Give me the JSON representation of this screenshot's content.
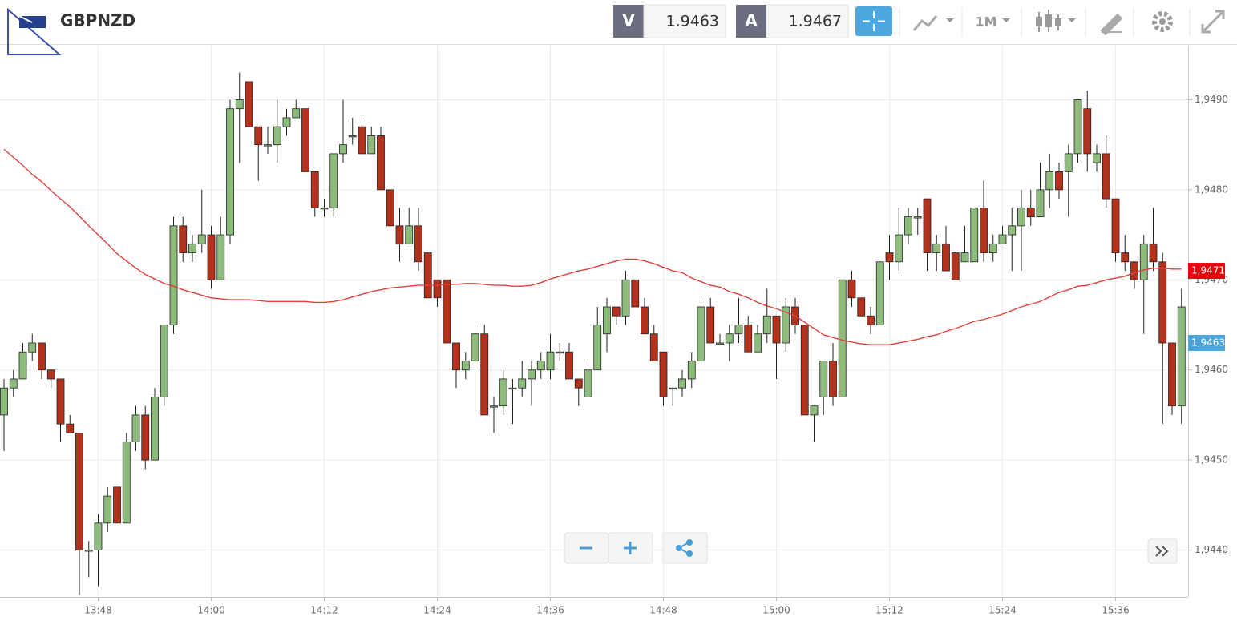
{
  "header": {
    "symbol": "GBPNZD",
    "bid_label": "V",
    "bid": "1.9463",
    "ask_label": "A",
    "ask": "1.9467",
    "timeframe": "1M"
  },
  "chart_data": {
    "type": "candlestick",
    "categories": [
      null,
      null,
      null,
      null,
      null,
      null,
      null,
      null,
      null,
      null,
      "13:48",
      null,
      null,
      null,
      null,
      null,
      null,
      null,
      null,
      null,
      null,
      null,
      "14:00",
      null,
      null,
      null,
      null,
      null,
      null,
      null,
      null,
      null,
      null,
      null,
      "14:12",
      null,
      null,
      null,
      null,
      null,
      null,
      null,
      null,
      null,
      null,
      null,
      "14:24",
      null,
      null,
      null,
      null,
      null,
      null,
      null,
      null,
      null,
      null,
      null,
      "14:36",
      null,
      null,
      null,
      null,
      null,
      null,
      null,
      null,
      null,
      null,
      null,
      "14:48",
      null,
      null,
      null,
      null,
      null,
      null,
      null,
      null,
      null,
      null,
      null,
      "15:00",
      null,
      null,
      null,
      null,
      null,
      null,
      null,
      null,
      null,
      null,
      null,
      "15:12",
      null,
      null,
      null,
      null,
      null,
      null,
      null,
      null,
      null,
      null,
      null,
      "15:24",
      null,
      null,
      null,
      null,
      null,
      null,
      null,
      null,
      null,
      null,
      null,
      "15:36",
      null,
      null,
      null,
      null,
      null,
      null,
      null
    ],
    "open": [
      1.9455,
      1.9458,
      1.9459,
      1.9462,
      1.9463,
      1.946,
      1.9459,
      1.9454,
      1.9453,
      1.944,
      1.944,
      1.9443,
      1.9447,
      1.9443,
      1.9452,
      1.9455,
      1.945,
      1.9457,
      1.9465,
      1.9476,
      1.9473,
      1.9474,
      1.9475,
      1.947,
      1.9475,
      1.9489,
      1.9492,
      1.9487,
      1.9485,
      1.9485,
      1.9487,
      1.9488,
      1.9489,
      1.9482,
      1.9478,
      1.9478,
      1.9484,
      1.9486,
      1.9487,
      1.9484,
      1.9486,
      1.948,
      1.9476,
      1.9474,
      1.9476,
      1.9473,
      1.947,
      1.947,
      1.9463,
      1.946,
      1.9461,
      1.9464,
      1.9456,
      1.9456,
      1.9458,
      1.9458,
      1.9459,
      1.946,
      1.946,
      1.9462,
      1.9462,
      1.9459,
      1.9457,
      1.946,
      1.9464,
      1.9467,
      1.9466,
      1.947,
      1.9467,
      1.9464,
      1.9462,
      1.9458,
      1.9458,
      1.9459,
      1.9461,
      1.9467,
      1.9463,
      1.9463,
      1.9464,
      1.9465,
      1.9462,
      1.9464,
      1.9466,
      1.9463,
      1.9467,
      1.9465,
      1.9455,
      1.9457,
      1.9461,
      1.9457,
      1.947,
      1.9468,
      1.9466,
      1.9465,
      1.9473,
      1.9472,
      1.9475,
      1.9477,
      1.9479,
      1.9473,
      1.9474,
      1.9473,
      1.9472,
      1.9472,
      1.9478,
      1.9473,
      1.9474,
      1.9475,
      1.9476,
      1.9478,
      1.9477,
      1.948,
      1.9482,
      1.9482,
      1.9484,
      1.9489,
      1.9483,
      1.9484,
      1.9479,
      1.9473,
      1.9472,
      1.947,
      1.9474,
      1.9472,
      1.9463,
      1.9456
    ],
    "high": [
      1.9459,
      1.946,
      1.9463,
      1.9464,
      1.9463,
      1.946,
      1.9459,
      1.9455,
      1.9453,
      1.9441,
      1.9444,
      1.9447,
      1.9447,
      1.9453,
      1.9456,
      1.9456,
      1.9458,
      1.9465,
      1.9477,
      1.9477,
      1.9475,
      1.948,
      1.9476,
      1.9477,
      1.949,
      1.9493,
      1.9492,
      1.9487,
      1.9487,
      1.949,
      1.9489,
      1.949,
      1.9489,
      1.9482,
      1.9479,
      1.9484,
      1.949,
      1.9488,
      1.9488,
      1.9487,
      1.9487,
      1.948,
      1.9478,
      1.9478,
      1.9478,
      1.9473,
      1.947,
      1.947,
      1.9463,
      1.9462,
      1.9465,
      1.9465,
      1.9457,
      1.946,
      1.9459,
      1.9461,
      1.9461,
      1.9462,
      1.9464,
      1.9463,
      1.9463,
      1.9459,
      1.9461,
      1.9467,
      1.9468,
      1.9467,
      1.9471,
      1.947,
      1.9468,
      1.9465,
      1.9462,
      1.9458,
      1.946,
      1.9462,
      1.9468,
      1.9468,
      1.9464,
      1.9465,
      1.9468,
      1.9466,
      1.9465,
      1.9469,
      1.9466,
      1.9468,
      1.9468,
      1.9465,
      1.9456,
      1.9461,
      1.9463,
      1.947,
      1.9471,
      1.9468,
      1.9467,
      1.9472,
      1.9475,
      1.9478,
      1.9478,
      1.9478,
      1.9479,
      1.9475,
      1.9476,
      1.9473,
      1.9476,
      1.9478,
      1.9481,
      1.9475,
      1.9476,
      1.9478,
      1.948,
      1.948,
      1.9483,
      1.9484,
      1.9483,
      1.9485,
      1.949,
      1.9491,
      1.9485,
      1.9486,
      1.9479,
      1.9475,
      1.9472,
      1.9475,
      1.9478,
      1.9473,
      1.9463,
      1.9469
    ],
    "low": [
      1.9451,
      1.9457,
      1.9459,
      1.9461,
      1.9459,
      1.9458,
      1.9452,
      1.9453,
      1.9435,
      1.9437,
      1.9436,
      1.9442,
      1.9443,
      1.9443,
      1.9451,
      1.9449,
      1.945,
      1.9456,
      1.9464,
      1.9472,
      1.9472,
      1.9473,
      1.9469,
      1.947,
      1.9474,
      1.9483,
      1.9487,
      1.9481,
      1.9484,
      1.9483,
      1.9486,
      1.9488,
      1.9482,
      1.9477,
      1.9477,
      1.9477,
      1.9483,
      1.9485,
      1.9484,
      1.9484,
      1.948,
      1.9476,
      1.9472,
      1.9474,
      1.9471,
      1.9468,
      1.9467,
      1.9463,
      1.9458,
      1.9459,
      1.946,
      1.9455,
      1.9453,
      1.9455,
      1.9454,
      1.9457,
      1.9456,
      1.9459,
      1.9459,
      1.9461,
      1.9459,
      1.9456,
      1.9457,
      1.946,
      1.9462,
      1.9465,
      1.9465,
      1.9467,
      1.9464,
      1.9461,
      1.9456,
      1.9456,
      1.9457,
      1.9458,
      1.9461,
      1.9463,
      1.9463,
      1.9461,
      1.9463,
      1.9462,
      1.9462,
      1.9463,
      1.9459,
      1.9462,
      1.9464,
      1.9455,
      1.9452,
      1.9455,
      1.9456,
      1.9457,
      1.9467,
      1.9466,
      1.9464,
      1.9465,
      1.947,
      1.9471,
      1.9474,
      1.9475,
      1.9471,
      1.9471,
      1.9471,
      1.947,
      1.9472,
      1.9472,
      1.9472,
      1.9472,
      1.9474,
      1.9471,
      1.9471,
      1.9476,
      1.9477,
      1.9478,
      1.9479,
      1.9477,
      1.9483,
      1.9482,
      1.9482,
      1.9478,
      1.9472,
      1.9471,
      1.9469,
      1.9464,
      1.9471,
      1.9454,
      1.9455,
      1.9454
    ],
    "close": [
      1.9458,
      1.9459,
      1.9462,
      1.9463,
      1.946,
      1.9459,
      1.9454,
      1.9453,
      1.944,
      1.944,
      1.9443,
      1.9446,
      1.9443,
      1.9452,
      1.9455,
      1.945,
      1.9457,
      1.9465,
      1.9476,
      1.9473,
      1.9474,
      1.9475,
      1.947,
      1.9475,
      1.9489,
      1.949,
      1.9487,
      1.9485,
      1.9485,
      1.9487,
      1.9488,
      1.9489,
      1.9482,
      1.9478,
      1.9478,
      1.9484,
      1.9485,
      1.9486,
      1.9484,
      1.9486,
      1.948,
      1.9476,
      1.9474,
      1.9476,
      1.9472,
      1.9468,
      1.9468,
      1.9463,
      1.946,
      1.9461,
      1.9464,
      1.9455,
      1.9456,
      1.9459,
      1.9458,
      1.9459,
      1.946,
      1.9461,
      1.9462,
      1.9462,
      1.9459,
      1.9458,
      1.946,
      1.9465,
      1.9467,
      1.9466,
      1.947,
      1.9467,
      1.9464,
      1.9461,
      1.9457,
      1.9458,
      1.9459,
      1.9461,
      1.9467,
      1.9463,
      1.9463,
      1.9464,
      1.9465,
      1.9462,
      1.9464,
      1.9466,
      1.9463,
      1.9467,
      1.9465,
      1.9455,
      1.9456,
      1.9461,
      1.9457,
      1.947,
      1.9468,
      1.9466,
      1.9465,
      1.9472,
      1.9472,
      1.9475,
      1.9477,
      1.9477,
      1.9473,
      1.9474,
      1.9471,
      1.947,
      1.9473,
      1.9478,
      1.9473,
      1.9474,
      1.9475,
      1.9476,
      1.9478,
      1.9477,
      1.948,
      1.9482,
      1.948,
      1.9484,
      1.949,
      1.9484,
      1.9484,
      1.9479,
      1.9473,
      1.9472,
      1.947,
      1.9474,
      1.9472,
      1.9463,
      1.9456,
      1.9467
    ],
    "up_color": "#8dbb7b",
    "down_color": "#b3321d",
    "moving_average": {
      "color": "#e2403a",
      "values": [
        1.94845,
        1.94836,
        1.94827,
        1.94817,
        1.94809,
        1.94799,
        1.9479,
        1.94781,
        1.94771,
        1.9476,
        1.9475,
        1.9474,
        1.94729,
        1.94721,
        1.94713,
        1.94706,
        1.94701,
        1.94696,
        1.94693,
        1.94689,
        1.94686,
        1.94683,
        1.9468,
        1.94679,
        1.94678,
        1.94678,
        1.94678,
        1.94677,
        1.94676,
        1.94676,
        1.94676,
        1.94676,
        1.94676,
        1.94675,
        1.94675,
        1.94676,
        1.94678,
        1.94681,
        1.94684,
        1.94687,
        1.94689,
        1.94691,
        1.94692,
        1.94693,
        1.94694,
        1.94694,
        1.94694,
        1.94695,
        1.94695,
        1.94696,
        1.94696,
        1.94695,
        1.94694,
        1.94694,
        1.94693,
        1.94693,
        1.94694,
        1.94697,
        1.94701,
        1.94704,
        1.94707,
        1.9471,
        1.94712,
        1.94715,
        1.94718,
        1.94721,
        1.94723,
        1.94723,
        1.94721,
        1.94718,
        1.94714,
        1.9471,
        1.94708,
        1.94702,
        1.94698,
        1.94694,
        1.94692,
        1.94687,
        1.94684,
        1.9468,
        1.94675,
        1.94671,
        1.94668,
        1.94664,
        1.9466,
        1.94653,
        1.94646,
        1.94639,
        1.94636,
        1.94633,
        1.94631,
        1.94629,
        1.94628,
        1.94628,
        1.94628,
        1.9463,
        1.94632,
        1.94634,
        1.94637,
        1.94639,
        1.94643,
        1.94646,
        1.9465,
        1.94654,
        1.94656,
        1.94659,
        1.94662,
        1.94666,
        1.9467,
        1.94673,
        1.94676,
        1.94681,
        1.94686,
        1.94689,
        1.94693,
        1.94694,
        1.94697,
        1.947,
        1.94702,
        1.94704,
        1.94708,
        1.94711,
        1.94713,
        1.94713,
        1.94712,
        1.94712
      ]
    },
    "ylim": [
      1.94348,
      1.9496
    ],
    "yticks": [
      {
        "value": 1.944,
        "label": "1,9440"
      },
      {
        "value": 1.945,
        "label": "1,9450"
      },
      {
        "value": 1.946,
        "label": "1,9460"
      },
      {
        "value": 1.947,
        "label": "1,9470"
      },
      {
        "value": 1.948,
        "label": "1,9480"
      },
      {
        "value": 1.949,
        "label": "1,9490"
      }
    ],
    "grid": true,
    "price_tags": [
      {
        "value": 1.9471,
        "label": "1,9471",
        "color": "#e8000b"
      },
      {
        "value": 1.9463,
        "label": "1,9463",
        "color": "#4aa6da"
      }
    ]
  }
}
